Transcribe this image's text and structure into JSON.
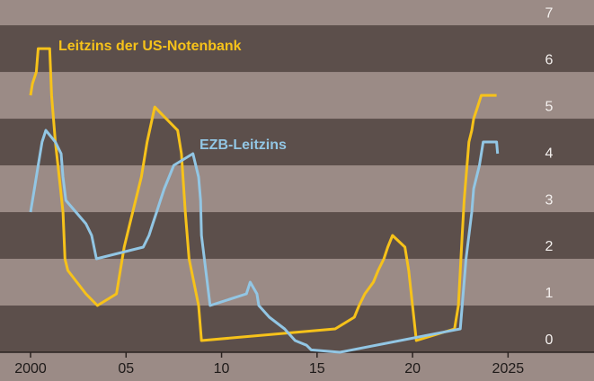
{
  "chart_data": {
    "type": "line",
    "xlim": [
      1998.4,
      2029.5
    ],
    "xticks": [
      {
        "value": 2000,
        "label": "2000"
      },
      {
        "value": 2005,
        "label": "05"
      },
      {
        "value": 2010,
        "label": "10"
      },
      {
        "value": 2015,
        "label": "15"
      },
      {
        "value": 2020,
        "label": "20"
      },
      {
        "value": 2025,
        "label": "2025"
      }
    ],
    "ylim": [
      0,
      7.54
    ],
    "yticks": [
      0,
      1,
      2,
      3,
      4,
      5,
      6,
      7
    ],
    "series": [
      {
        "name": "Leitzins der US-Notenbank",
        "color": "#f6c21a",
        "x": [
          2000.0,
          2000.1,
          2000.3,
          2000.4,
          2001.0,
          2001.1,
          2001.3,
          2001.5,
          2001.7,
          2001.8,
          2001.95,
          2002.9,
          2003.5,
          2004.5,
          2004.7,
          2004.9,
          2005.2,
          2005.5,
          2005.8,
          2006.1,
          2006.5,
          2007.7,
          2007.9,
          2008.1,
          2008.3,
          2008.8,
          2008.95,
          2015.95,
          2016.95,
          2017.2,
          2017.5,
          2017.95,
          2018.2,
          2018.5,
          2018.7,
          2018.95,
          2019.6,
          2019.8,
          2020.2,
          2022.2,
          2022.4,
          2022.5,
          2022.6,
          2022.7,
          2022.85,
          2022.95,
          2023.1,
          2023.2,
          2023.4,
          2023.6,
          2024.4
        ],
        "values": [
          5.5,
          5.75,
          6.0,
          6.5,
          6.5,
          5.5,
          4.5,
          3.75,
          3.0,
          2.0,
          1.75,
          1.25,
          1.0,
          1.25,
          1.75,
          2.25,
          2.75,
          3.25,
          3.75,
          4.5,
          5.25,
          4.75,
          4.25,
          3.0,
          2.0,
          1.0,
          0.25,
          0.5,
          0.75,
          1.0,
          1.25,
          1.5,
          1.75,
          2.0,
          2.25,
          2.5,
          2.25,
          1.75,
          0.25,
          0.5,
          1.0,
          1.75,
          2.5,
          3.25,
          4.0,
          4.5,
          4.75,
          5.0,
          5.25,
          5.5,
          5.5
        ]
      },
      {
        "name": "EZB-Leitzins",
        "color": "#92c6e4",
        "x": [
          2000.0,
          2000.2,
          2000.4,
          2000.6,
          2000.8,
          2001.3,
          2001.6,
          2001.7,
          2001.85,
          2002.9,
          2003.2,
          2003.45,
          2005.9,
          2006.2,
          2006.4,
          2006.6,
          2006.8,
          2007.0,
          2007.5,
          2008.5,
          2008.8,
          2008.9,
          2008.95,
          2009.1,
          2009.25,
          2009.4,
          2011.3,
          2011.5,
          2011.85,
          2011.95,
          2012.5,
          2013.3,
          2013.85,
          2014.45,
          2014.7,
          2016.2,
          2022.5,
          2022.65,
          2022.8,
          2022.95,
          2023.1,
          2023.2,
          2023.35,
          2023.5,
          2023.7,
          2024.4,
          2024.45
        ],
        "values": [
          3.0,
          3.5,
          4.0,
          4.5,
          4.75,
          4.5,
          4.25,
          3.75,
          3.25,
          2.75,
          2.5,
          2.0,
          2.25,
          2.5,
          2.75,
          3.0,
          3.25,
          3.5,
          4.0,
          4.25,
          3.75,
          3.25,
          2.5,
          2.0,
          1.5,
          1.0,
          1.25,
          1.5,
          1.25,
          1.0,
          0.75,
          0.5,
          0.25,
          0.15,
          0.05,
          0.0,
          0.5,
          1.25,
          2.0,
          2.5,
          3.0,
          3.5,
          3.75,
          4.0,
          4.5,
          4.5,
          4.25
        ]
      }
    ]
  }
}
